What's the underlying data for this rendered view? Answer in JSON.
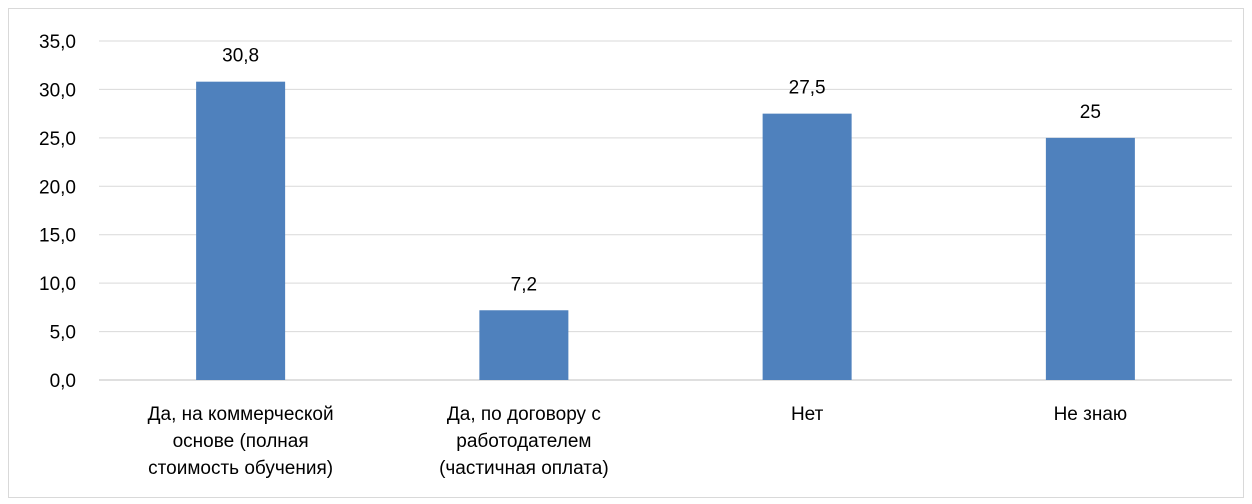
{
  "chart_data": {
    "type": "bar",
    "categories": [
      [
        "Да, на коммерческой",
        "основе (полная",
        "стоимость обучения)"
      ],
      [
        "Да, по договору с",
        "работодателем",
        "(частичная оплата)"
      ],
      [
        "Нет"
      ],
      [
        "Не знаю"
      ]
    ],
    "values": [
      30.8,
      7.2,
      27.5,
      25
    ],
    "data_labels": [
      "30,8",
      "7,2",
      "27,5",
      "25"
    ],
    "y_ticks": [
      0,
      5,
      10,
      15,
      20,
      25,
      30,
      35
    ],
    "y_tick_labels": [
      "0,0",
      "5,0",
      "10,0",
      "15,0",
      "20,0",
      "25,0",
      "30,0",
      "35,0"
    ],
    "ylim": [
      0,
      35
    ],
    "grid": true,
    "legend": "none",
    "bar_color": "#4f81bd",
    "grid_color": "#d9d9d9",
    "axis_color": "#bfbfbf"
  }
}
